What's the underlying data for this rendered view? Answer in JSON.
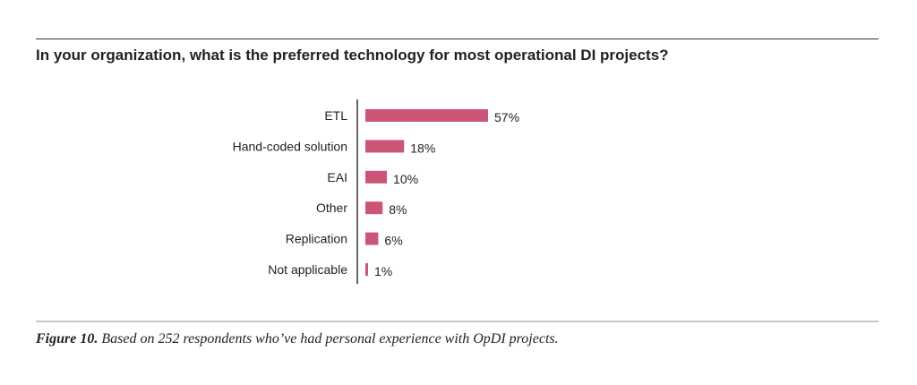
{
  "title": "In your organization, what is the preferred technology for most operational DI projects?",
  "caption": {
    "figure_label": "Figure 10.",
    "text": "Based on 252 respondents who’ve had personal experience with OpDI projects."
  },
  "colors": {
    "bar": "#cc5577",
    "axis": "#333333"
  },
  "chart_data": {
    "type": "bar",
    "orientation": "horizontal",
    "categories": [
      "ETL",
      "Hand-coded solution",
      "EAI",
      "Other",
      "Replication",
      "Not applicable"
    ],
    "values": [
      57,
      18,
      10,
      8,
      6,
      1
    ],
    "value_labels": [
      "57%",
      "18%",
      "10%",
      "8%",
      "6%",
      "1%"
    ],
    "unit": "%",
    "xlim": [
      0,
      57
    ],
    "grid": false,
    "legend": "none"
  }
}
